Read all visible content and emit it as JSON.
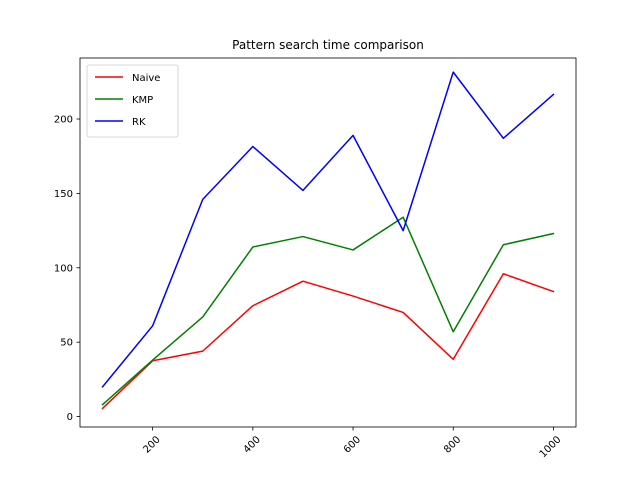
{
  "chart_data": {
    "type": "line",
    "title": "Pattern search time comparison",
    "xlabel": "",
    "ylabel": "",
    "x": [
      100,
      200,
      300,
      400,
      500,
      600,
      700,
      800,
      900,
      1000
    ],
    "xlim": [
      55,
      1045
    ],
    "ylim": [
      -7,
      241
    ],
    "xticks": [
      200,
      400,
      600,
      800,
      1000
    ],
    "yticks": [
      0,
      50,
      100,
      150,
      200
    ],
    "xtick_rotation": 45,
    "grid": false,
    "legend_placement": "upper-left",
    "series": [
      {
        "name": "Naive",
        "color": "#ff0000",
        "values": [
          5.5,
          37.5,
          44,
          74.5,
          91,
          81,
          70,
          38.5,
          96,
          84
        ]
      },
      {
        "name": "KMP",
        "color": "#008000",
        "values": [
          8,
          38,
          67,
          114,
          121,
          112,
          134,
          57,
          115.5,
          123
        ]
      },
      {
        "name": "RK",
        "color": "#0000ff",
        "values": [
          20,
          61,
          146,
          181.5,
          152,
          189,
          125,
          231.5,
          187,
          216.5
        ]
      }
    ]
  }
}
